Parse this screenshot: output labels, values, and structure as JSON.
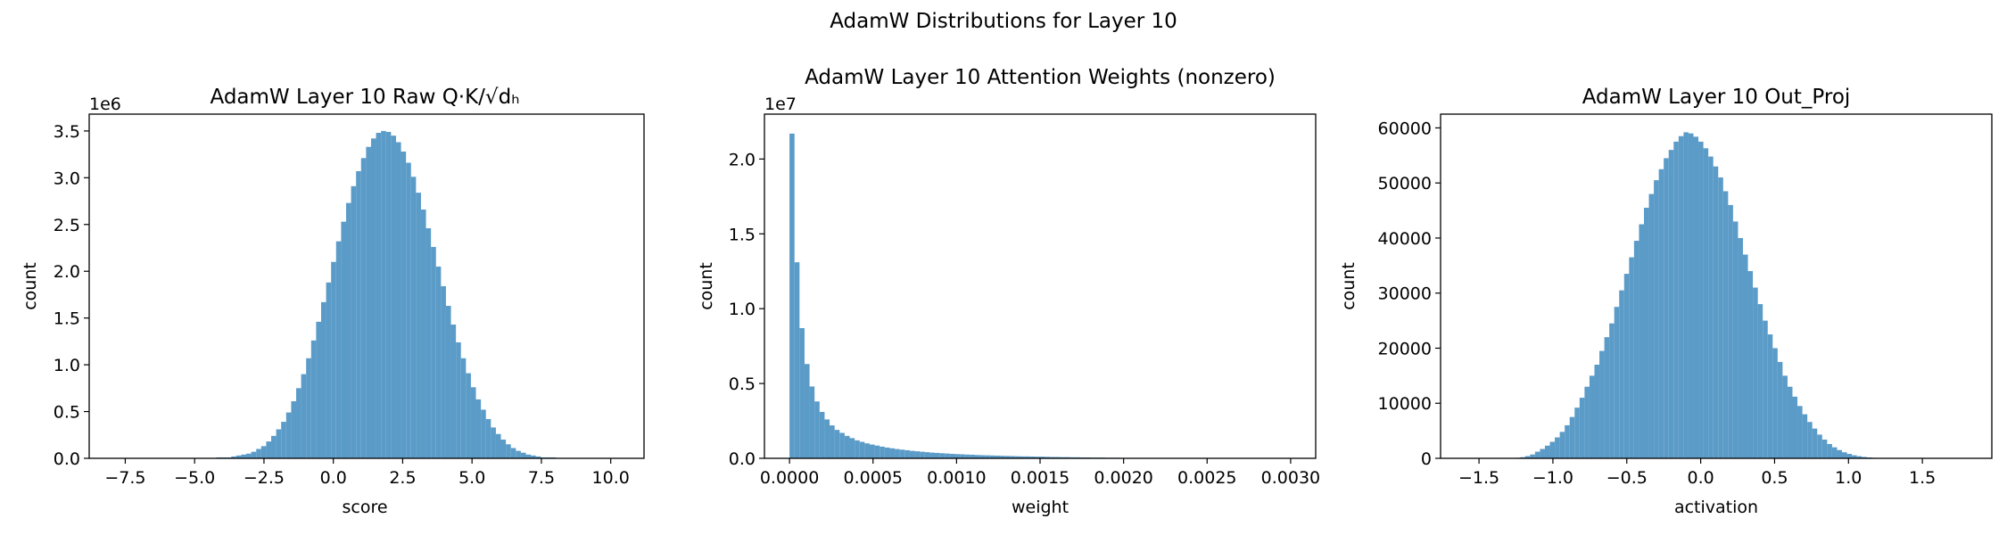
{
  "figure": {
    "title": "AdamW Distributions for Layer 10"
  },
  "colors": {
    "bar": "#5b9bc8",
    "axis": "#000000"
  },
  "chart_data": [
    {
      "type": "histogram",
      "title": "AdamW Layer 10 Raw Q·K/√dₕ",
      "xlabel": "score",
      "ylabel": "count",
      "offset_label": "1e6",
      "xlim": [
        -8.8,
        11.2
      ],
      "ylim": [
        0,
        3.68
      ],
      "xticks": [
        -7.5,
        -5.0,
        -2.5,
        0.0,
        2.5,
        5.0,
        7.5,
        10.0
      ],
      "xtick_labels": [
        "−7.5",
        "−5.0",
        "−2.5",
        "0.0",
        "2.5",
        "5.0",
        "7.5",
        "10.0"
      ],
      "yticks": [
        0.0,
        0.5,
        1.0,
        1.5,
        2.0,
        2.5,
        3.0,
        3.5
      ],
      "ytick_labels": [
        "0.0",
        "0.5",
        "1.0",
        "1.5",
        "2.0",
        "2.5",
        "3.0",
        "3.5"
      ],
      "bin_start": -8.0,
      "bin_width": 0.18,
      "values": [
        0.0,
        0.0,
        0.0,
        0.0,
        0.0,
        0.0,
        0.0,
        0.0,
        0.0,
        0.0,
        0.0,
        0.0,
        0.0,
        0.0,
        0.0,
        0.0,
        0.0,
        0.0,
        0.0,
        0.0,
        0.0,
        0.01,
        0.01,
        0.01,
        0.02,
        0.03,
        0.04,
        0.05,
        0.07,
        0.1,
        0.13,
        0.18,
        0.24,
        0.31,
        0.39,
        0.49,
        0.61,
        0.75,
        0.9,
        1.07,
        1.26,
        1.46,
        1.67,
        1.88,
        2.1,
        2.32,
        2.53,
        2.73,
        2.91,
        3.07,
        3.21,
        3.33,
        3.42,
        3.48,
        3.5,
        3.49,
        3.45,
        3.38,
        3.28,
        3.16,
        3.01,
        2.84,
        2.66,
        2.46,
        2.26,
        2.05,
        1.84,
        1.63,
        1.43,
        1.24,
        1.07,
        0.91,
        0.76,
        0.63,
        0.52,
        0.42,
        0.33,
        0.26,
        0.2,
        0.15,
        0.11,
        0.08,
        0.06,
        0.04,
        0.03,
        0.02,
        0.01,
        0.01,
        0.01,
        0.0,
        0.0,
        0.0,
        0.0,
        0.0,
        0.0,
        0.0,
        0.0,
        0.0,
        0.0,
        0.0
      ]
    },
    {
      "type": "histogram",
      "title": "AdamW Layer 10 Attention Weights (nonzero)",
      "xlabel": "weight",
      "ylabel": "count",
      "offset_label": "1e7",
      "xlim": [
        -0.00015,
        0.00315
      ],
      "ylim": [
        0,
        2.3
      ],
      "xticks": [
        0.0,
        0.0005,
        0.001,
        0.0015,
        0.002,
        0.0025,
        0.003
      ],
      "xtick_labels": [
        "0.0000",
        "0.0005",
        "0.0010",
        "0.0015",
        "0.0020",
        "0.0025",
        "0.0030"
      ],
      "yticks": [
        0.0,
        0.5,
        1.0,
        1.5,
        2.0
      ],
      "ytick_labels": [
        "0.0",
        "0.5",
        "1.0",
        "1.5",
        "2.0"
      ],
      "bin_start": 0.0,
      "bin_width": 3e-05,
      "values": [
        2.17,
        1.31,
        0.87,
        0.63,
        0.48,
        0.38,
        0.31,
        0.26,
        0.22,
        0.19,
        0.17,
        0.15,
        0.135,
        0.12,
        0.11,
        0.1,
        0.092,
        0.085,
        0.078,
        0.072,
        0.067,
        0.062,
        0.058,
        0.054,
        0.05,
        0.047,
        0.044,
        0.041,
        0.038,
        0.036,
        0.034,
        0.032,
        0.03,
        0.028,
        0.027,
        0.025,
        0.024,
        0.022,
        0.021,
        0.02,
        0.019,
        0.018,
        0.017,
        0.016,
        0.015,
        0.014,
        0.013,
        0.013,
        0.012,
        0.011,
        0.011,
        0.01,
        0.009,
        0.009,
        0.008,
        0.008,
        0.007,
        0.007,
        0.006,
        0.006,
        0.005,
        0.005,
        0.005,
        0.004,
        0.004,
        0.004,
        0.003,
        0.003,
        0.003,
        0.003,
        0.002,
        0.002,
        0.002,
        0.002,
        0.002,
        0.001,
        0.001,
        0.001,
        0.001,
        0.001,
        0.001,
        0.001,
        0.001,
        0.001,
        0.001,
        0.0,
        0.0,
        0.0,
        0.0,
        0.0,
        0.0,
        0.0,
        0.0,
        0.0,
        0.0,
        0.0,
        0.0,
        0.0,
        0.0,
        0.0
      ]
    },
    {
      "type": "histogram",
      "title": "AdamW Layer 10 Out_Proj",
      "xlabel": "activation",
      "ylabel": "count",
      "offset_label": "",
      "xlim": [
        -1.76,
        1.97
      ],
      "ylim": [
        0,
        62500
      ],
      "xticks": [
        -1.5,
        -1.0,
        -0.5,
        0.0,
        0.5,
        1.0,
        1.5
      ],
      "xtick_labels": [
        "−1.5",
        "−1.0",
        "−0.5",
        "0.0",
        "0.5",
        "1.0",
        "1.5"
      ],
      "yticks": [
        0,
        10000,
        20000,
        30000,
        40000,
        50000,
        60000
      ],
      "ytick_labels": [
        "0",
        "10000",
        "20000",
        "30000",
        "40000",
        "50000",
        "60000"
      ],
      "bin_start": -1.59,
      "bin_width": 0.0335,
      "values": [
        0,
        0,
        0,
        0,
        0,
        0,
        0,
        0,
        0,
        50,
        100,
        200,
        400,
        700,
        1200,
        1700,
        2300,
        3000,
        3800,
        4800,
        6000,
        7500,
        9200,
        11000,
        13000,
        15000,
        17000,
        19500,
        22000,
        24500,
        27500,
        30500,
        33500,
        36500,
        39500,
        42500,
        45500,
        48000,
        50500,
        52500,
        54500,
        56000,
        57500,
        58500,
        59200,
        59000,
        58400,
        57500,
        56300,
        54800,
        53000,
        51000,
        48500,
        46000,
        43000,
        40000,
        37000,
        34000,
        31000,
        28000,
        25000,
        22500,
        20000,
        17500,
        15000,
        13000,
        11200,
        9500,
        8000,
        6600,
        5400,
        4300,
        3400,
        2600,
        2000,
        1500,
        1100,
        800,
        550,
        380,
        250,
        160,
        100,
        60,
        40,
        20,
        10,
        0,
        0,
        0,
        0,
        0,
        0,
        0,
        0,
        0,
        0,
        0,
        0,
        0
      ]
    }
  ]
}
